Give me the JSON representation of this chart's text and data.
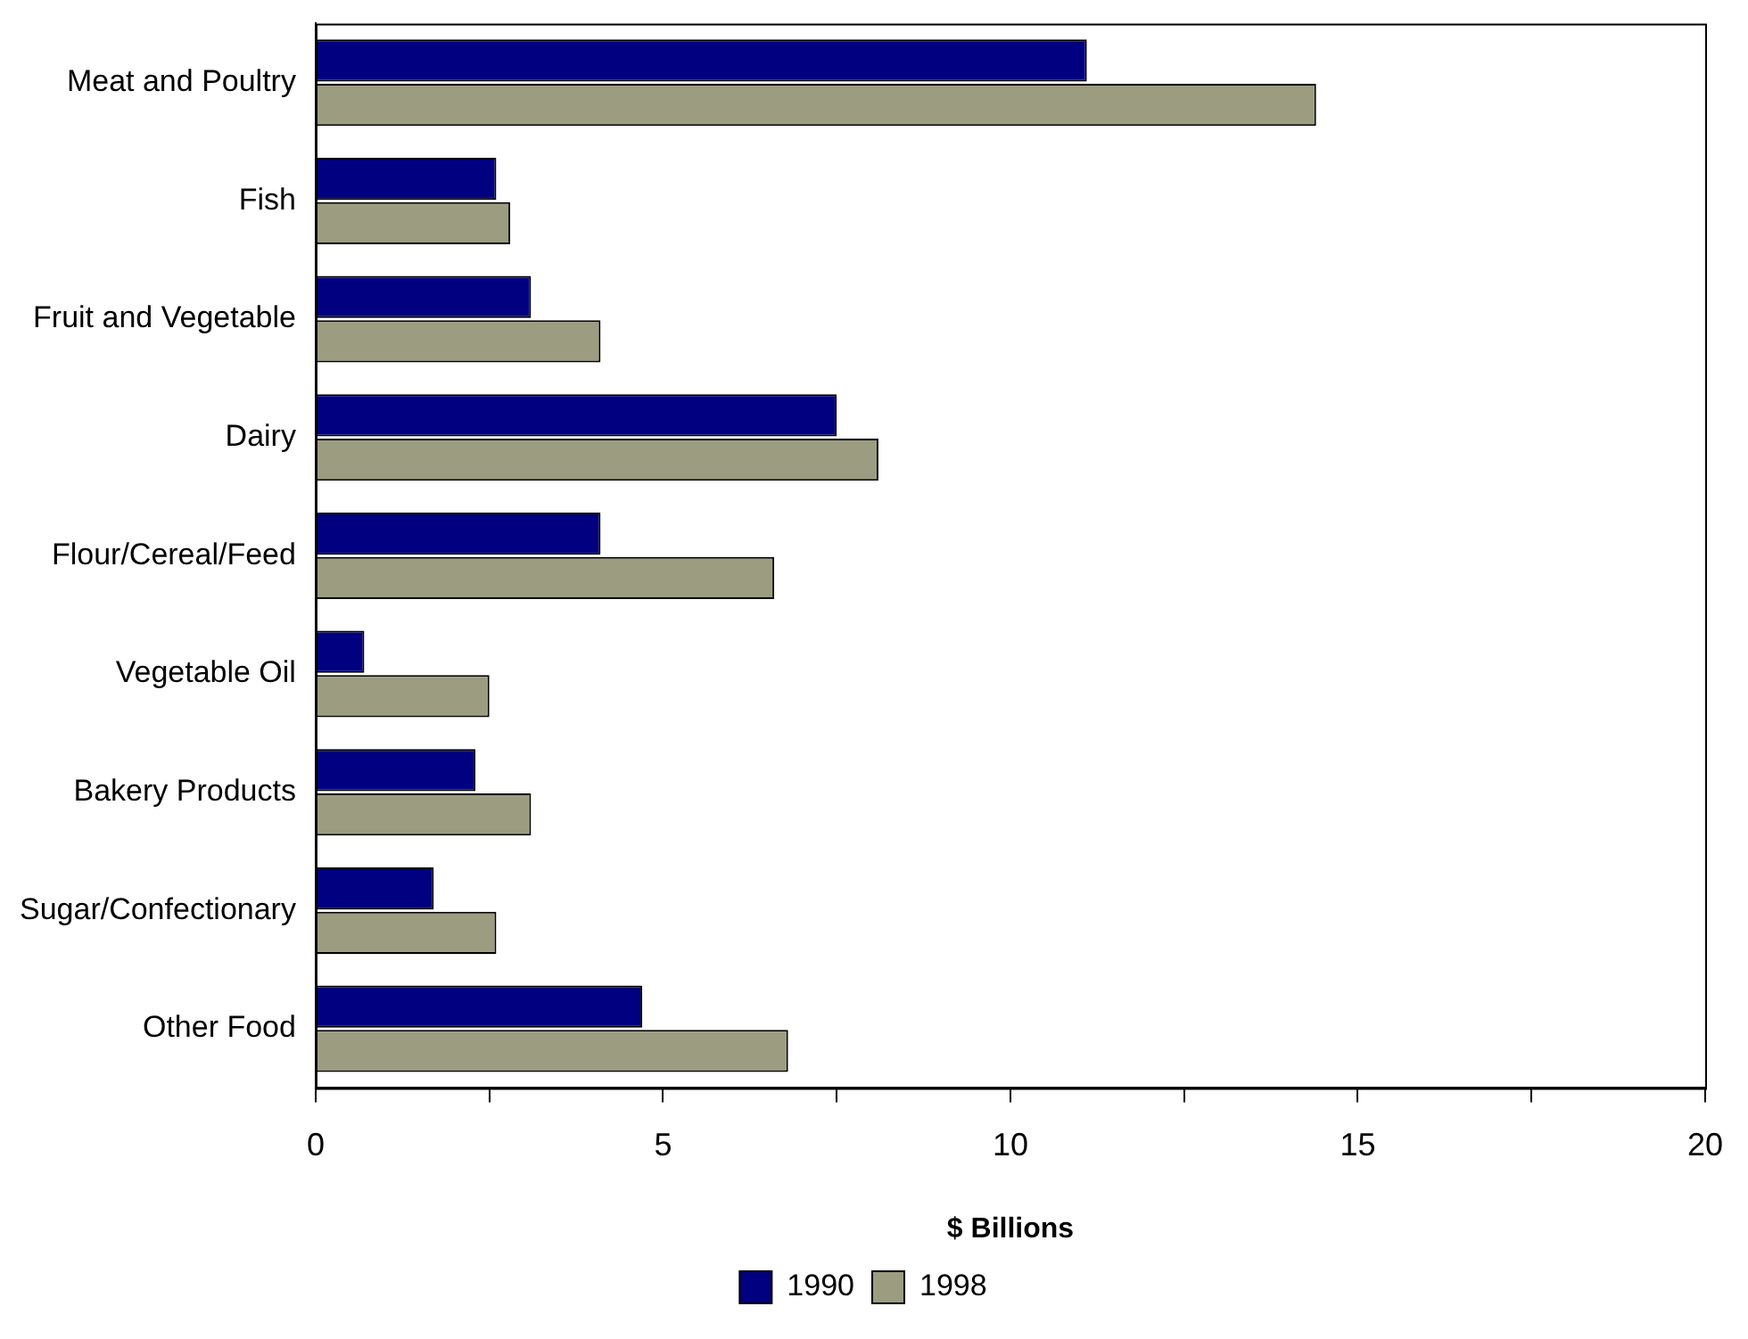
{
  "chart_data": {
    "type": "bar",
    "orientation": "horizontal",
    "xlabel": "$ Billions",
    "categories": [
      "Meat and Poultry",
      "Fish",
      "Fruit and Vegetable",
      "Dairy",
      "Flour/Cereal/Feed",
      "Vegetable Oil",
      "Bakery Products",
      "Sugar/Confectionary",
      "Other Food"
    ],
    "series": [
      {
        "name": "1990",
        "color": "#000080",
        "values": [
          11.1,
          2.6,
          3.1,
          7.5,
          4.1,
          0.7,
          2.3,
          1.7,
          4.7
        ]
      },
      {
        "name": "1998",
        "color": "#9c9c80",
        "values": [
          14.4,
          2.8,
          4.1,
          8.1,
          6.6,
          2.5,
          3.1,
          2.6,
          6.8
        ]
      }
    ],
    "xlim": [
      0,
      20
    ],
    "xticks": [
      0,
      {
        "value": 2.5,
        "label": null
      },
      5,
      {
        "value": 7.5,
        "label": null
      },
      10,
      {
        "value": 12.5,
        "label": null
      },
      15,
      {
        "value": 17.5,
        "label": null
      },
      20
    ],
    "grid": false,
    "legend": "bottom"
  }
}
